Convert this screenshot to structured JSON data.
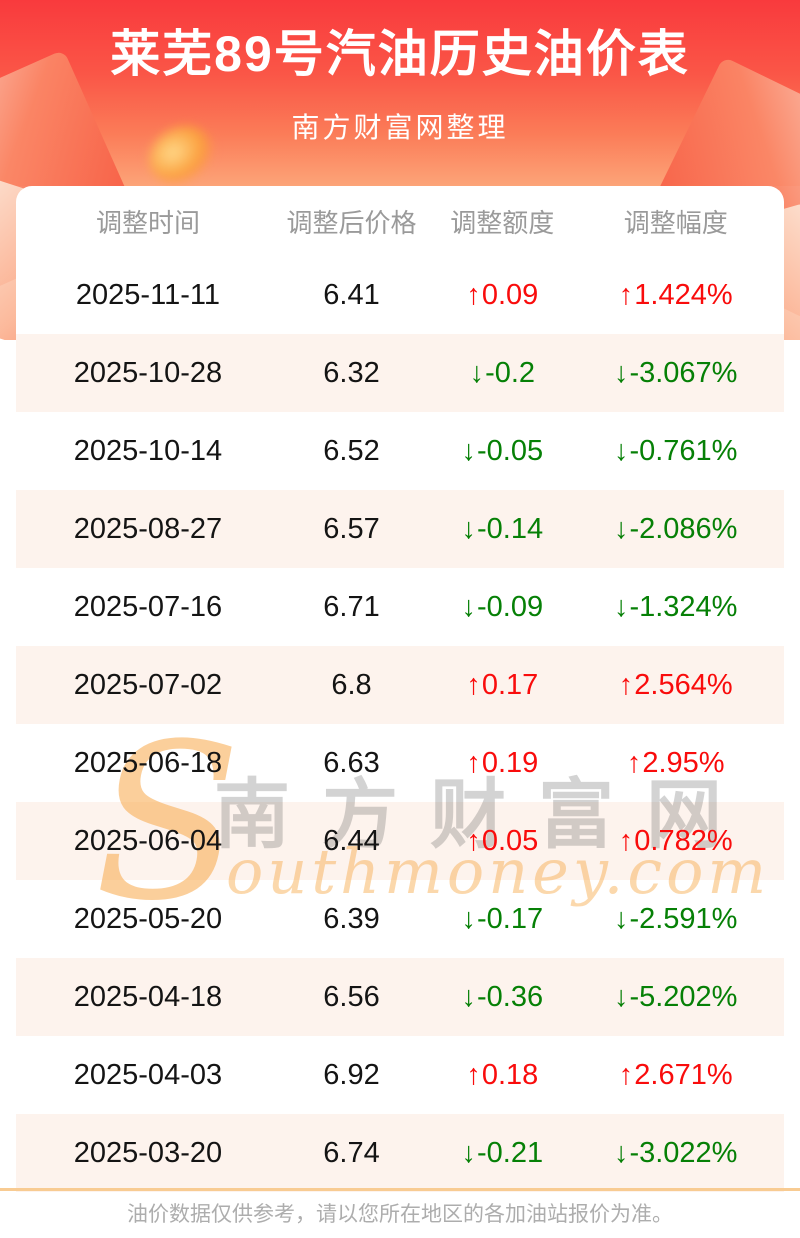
{
  "header": {
    "title": "莱芜89号汽油历史油价表",
    "subtitle": "南方财富网整理"
  },
  "table": {
    "columns": [
      "调整时间",
      "调整后价格",
      "调整额度",
      "调整幅度"
    ],
    "up_arrow": "↑",
    "down_arrow": "↓",
    "rows": [
      {
        "date": "2025-11-11",
        "price": "6.41",
        "change": "0.09",
        "pct": "1.424%",
        "dir": "up"
      },
      {
        "date": "2025-10-28",
        "price": "6.32",
        "change": "-0.2",
        "pct": "-3.067%",
        "dir": "down"
      },
      {
        "date": "2025-10-14",
        "price": "6.52",
        "change": "-0.05",
        "pct": "-0.761%",
        "dir": "down"
      },
      {
        "date": "2025-08-27",
        "price": "6.57",
        "change": "-0.14",
        "pct": "-2.086%",
        "dir": "down"
      },
      {
        "date": "2025-07-16",
        "price": "6.71",
        "change": "-0.09",
        "pct": "-1.324%",
        "dir": "down"
      },
      {
        "date": "2025-07-02",
        "price": "6.8",
        "change": "0.17",
        "pct": "2.564%",
        "dir": "up"
      },
      {
        "date": "2025-06-18",
        "price": "6.63",
        "change": "0.19",
        "pct": "2.95%",
        "dir": "up"
      },
      {
        "date": "2025-06-04",
        "price": "6.44",
        "change": "0.05",
        "pct": "0.782%",
        "dir": "up"
      },
      {
        "date": "2025-05-20",
        "price": "6.39",
        "change": "-0.17",
        "pct": "-2.591%",
        "dir": "down"
      },
      {
        "date": "2025-04-18",
        "price": "6.56",
        "change": "-0.36",
        "pct": "-5.202%",
        "dir": "down"
      },
      {
        "date": "2025-04-03",
        "price": "6.92",
        "change": "0.18",
        "pct": "2.671%",
        "dir": "up"
      },
      {
        "date": "2025-03-20",
        "price": "6.74",
        "change": "-0.21",
        "pct": "-3.022%",
        "dir": "down"
      }
    ]
  },
  "watermark": {
    "initial": "S",
    "cn": "南方财富网",
    "en": "outhmoney.com"
  },
  "footer": {
    "note": "油价数据仅供参考，请以您所在地区的各加油站报价为准。"
  },
  "colors": {
    "up": "#f90c0c",
    "down": "#068006",
    "banner_top": "#f93a3d",
    "banner_bottom": "#fca478",
    "row_alt": "#fdf3ed",
    "divider": "#f8cb92"
  }
}
